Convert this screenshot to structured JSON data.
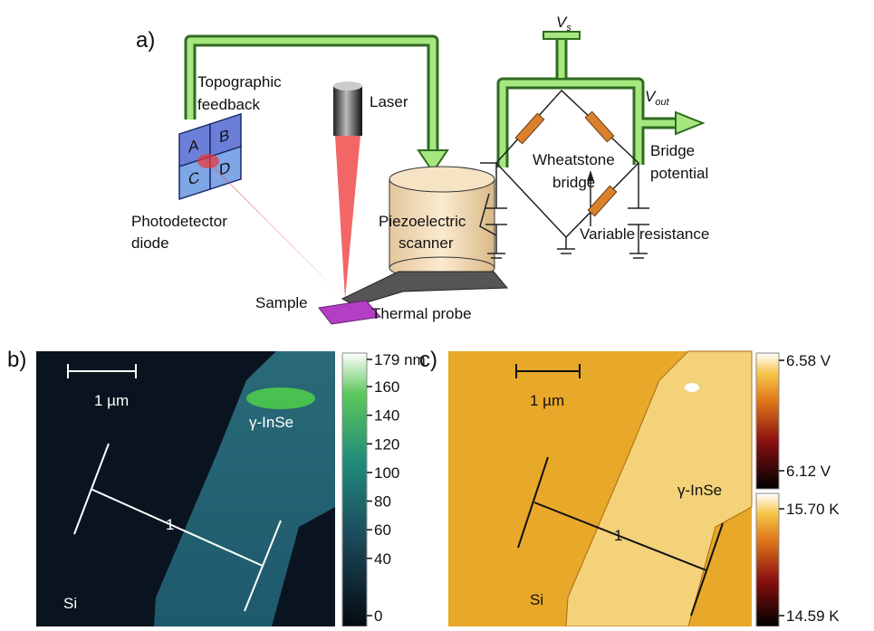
{
  "panel_a": {
    "label": "a)",
    "topographic_feedback": [
      "Topographic",
      "feedback"
    ],
    "laser": "Laser",
    "quadrants": [
      "A",
      "B",
      "C",
      "D"
    ],
    "photodetector": [
      "Photodetector",
      "diode"
    ],
    "scanner": [
      "Piezoelectric",
      "scanner"
    ],
    "vs": {
      "main": "V",
      "sub": "s"
    },
    "vout": {
      "main": "V",
      "sub": "out"
    },
    "bridge_potential": [
      "Bridge",
      "potential"
    ],
    "wheatstone": [
      "Wheatstone",
      "bridge"
    ],
    "variable_resistance": "Variable resistance",
    "sample": "Sample",
    "thermal_probe": "Thermal probe"
  },
  "panel_b": {
    "label": "b)",
    "scale_bar": "1 µm",
    "material": "γ-InSe",
    "line_label": "1",
    "substrate": "Si",
    "colorbar": {
      "lim": [
        0,
        179
      ],
      "ticks": [
        {
          "value": 179,
          "label": "179 nm"
        },
        160,
        140,
        120,
        100,
        80,
        60,
        40,
        0
      ]
    }
  },
  "panel_c": {
    "label": "c)",
    "scale_bar": "1 µm",
    "material": "γ-InSe",
    "line_label": "1",
    "substrate": "Si",
    "colorbars": [
      {
        "lim": [
          6.12,
          6.58
        ],
        "ticks": [
          {
            "value": 6.58,
            "label": "6.58 V"
          },
          {
            "value": 6.12,
            "label": "6.12 V"
          }
        ]
      },
      {
        "lim": [
          14.59,
          15.7
        ],
        "ticks": [
          {
            "value": 15.7,
            "label": "15.70 K"
          },
          {
            "value": 14.59,
            "label": "14.59 K"
          }
        ]
      }
    ]
  }
}
